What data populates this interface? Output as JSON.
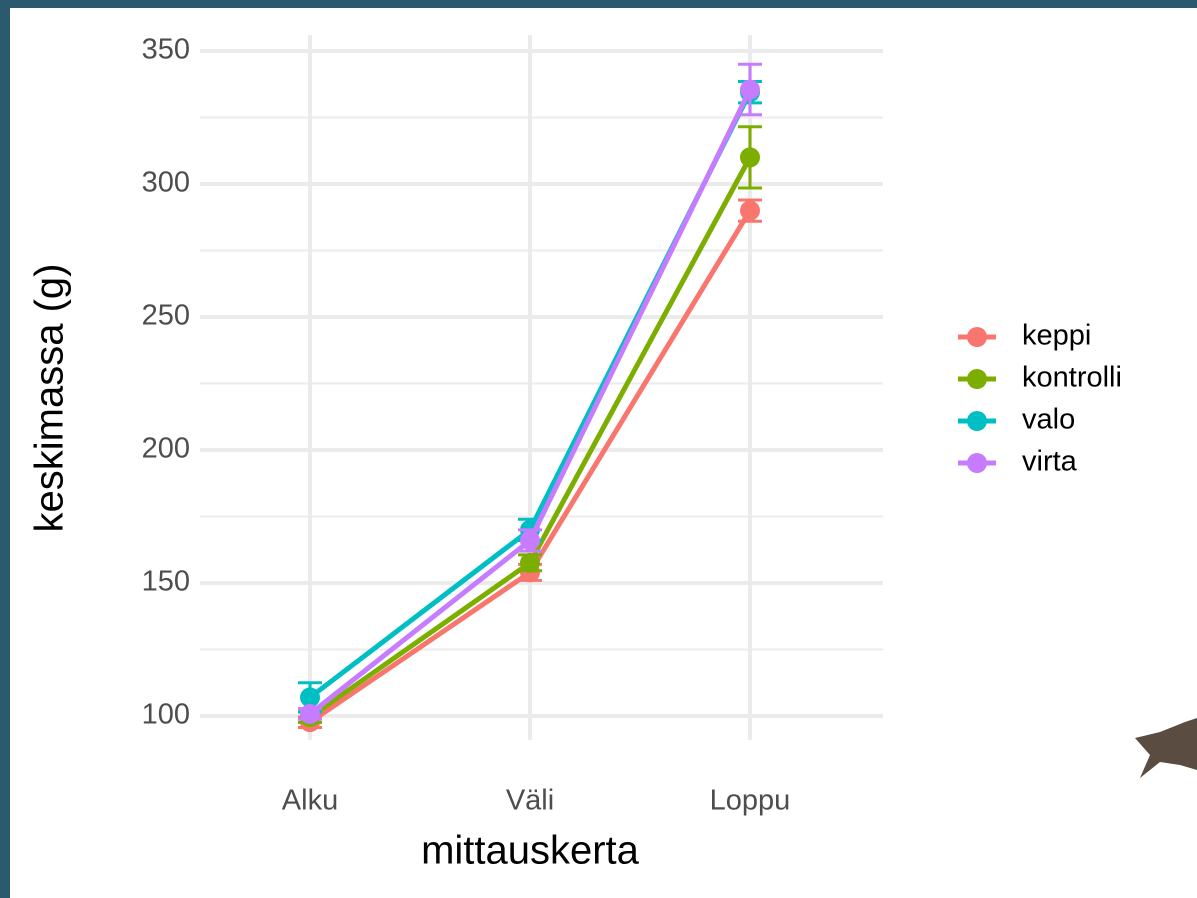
{
  "chart_data": {
    "type": "line",
    "x_label": "mittauskerta",
    "y_label": "keskimassa (g)",
    "categories": [
      "Alku",
      "Väli",
      "Loppu"
    ],
    "series": [
      {
        "name": "keppi",
        "color": "#f8766d",
        "values": [
          97.7,
          154,
          290
        ],
        "errors": [
          2,
          3,
          4
        ]
      },
      {
        "name": "kontrolli",
        "color": "#7cae00",
        "values": [
          99.6,
          157.6,
          310
        ],
        "errors": [
          2,
          3,
          11.5
        ]
      },
      {
        "name": "valo",
        "color": "#00bfc4",
        "values": [
          107,
          170,
          334.5
        ],
        "errors": [
          5.5,
          4,
          4
        ]
      },
      {
        "name": "virta",
        "color": "#c77cff",
        "values": [
          100.8,
          166,
          335.5
        ],
        "errors": [
          2,
          4,
          9.5
        ]
      }
    ],
    "ylim": [
      91,
      356
    ],
    "yticks": [
      100,
      150,
      200,
      250,
      300,
      350
    ],
    "yticks_minor": [
      125,
      175,
      225,
      275,
      325
    ],
    "grid": true,
    "legend": "right"
  }
}
